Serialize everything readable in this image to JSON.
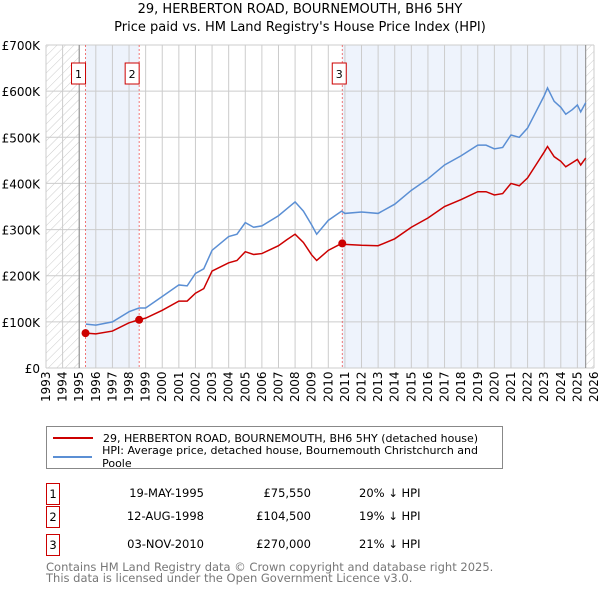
{
  "chart_data": {
    "type": "line",
    "title": "29, HERBERTON ROAD, BOURNEMOUTH, BH6 5HY",
    "subtitle": "Price paid vs. HM Land Registry's House Price Index (HPI)",
    "xlim": [
      1993,
      2026
    ],
    "ylim": [
      0,
      700000
    ],
    "x_ticks": [
      "1993",
      "1994",
      "1995",
      "1996",
      "1997",
      "1998",
      "1999",
      "2000",
      "2001",
      "2002",
      "2003",
      "2004",
      "2005",
      "2006",
      "2007",
      "2008",
      "2009",
      "2010",
      "2011",
      "2012",
      "2013",
      "2014",
      "2015",
      "2016",
      "2017",
      "2018",
      "2019",
      "2020",
      "2021",
      "2022",
      "2023",
      "2024",
      "2025",
      "2026"
    ],
    "y_ticks": [
      {
        "v": 0,
        "label": "£0"
      },
      {
        "v": 100000,
        "label": "£100K"
      },
      {
        "v": 200000,
        "label": "£200K"
      },
      {
        "v": 300000,
        "label": "£300K"
      },
      {
        "v": 400000,
        "label": "£400K"
      },
      {
        "v": 500000,
        "label": "£500K"
      },
      {
        "v": 600000,
        "label": "£600K"
      },
      {
        "v": 700000,
        "label": "£700K"
      }
    ],
    "x": [
      1995.4,
      1996,
      1997,
      1998,
      1998.6,
      1999,
      2000,
      2001,
      2001.5,
      2002,
      2002.5,
      2003,
      2004,
      2004.5,
      2005,
      2005.5,
      2006,
      2007,
      2007.5,
      2008,
      2008.5,
      2009,
      2009.3,
      2010,
      2010.8,
      2011,
      2012,
      2013,
      2014,
      2015,
      2016,
      2017,
      2018,
      2019,
      2019.5,
      2020,
      2020.5,
      2021,
      2021.5,
      2022,
      2022.5,
      2023,
      2023.2,
      2023.6,
      2024,
      2024.3,
      2024.7,
      2025,
      2025.2,
      2025.5
    ],
    "series": [
      {
        "name": "29, HERBERTON ROAD, BOURNEMOUTH, BH6 5HY (detached house)",
        "color": "#cc0000",
        "values": [
          75550,
          74000,
          80000,
          98000,
          104500,
          108000,
          125000,
          145000,
          145000,
          162000,
          172000,
          210000,
          228000,
          233000,
          252000,
          246000,
          248000,
          265000,
          278000,
          290000,
          272000,
          245000,
          233000,
          255000,
          270000,
          268000,
          266000,
          265000,
          280000,
          305000,
          325000,
          350000,
          365000,
          382000,
          382000,
          375000,
          378000,
          400000,
          395000,
          412000,
          440000,
          468000,
          480000,
          458000,
          448000,
          436000,
          445000,
          452000,
          440000,
          455000
        ]
      },
      {
        "name": "HPI: Average price, detached house, Bournemouth Christchurch and Poole",
        "color": "#5b8fd4",
        "values": [
          95000,
          93000,
          100000,
          122000,
          130000,
          130000,
          155000,
          180000,
          178000,
          205000,
          215000,
          255000,
          285000,
          290000,
          315000,
          305000,
          308000,
          330000,
          345000,
          360000,
          340000,
          310000,
          290000,
          320000,
          340000,
          335000,
          338000,
          335000,
          355000,
          385000,
          410000,
          440000,
          460000,
          483000,
          483000,
          475000,
          478000,
          505000,
          500000,
          520000,
          555000,
          590000,
          607000,
          578000,
          565000,
          550000,
          560000,
          570000,
          555000,
          575000
        ]
      }
    ],
    "sales": [
      {
        "n": "1",
        "x": 1995.38,
        "value": 75550,
        "date": "19-MAY-1995",
        "price": "£75,550",
        "hpi": "20% ↓ HPI"
      },
      {
        "n": "2",
        "x": 1998.61,
        "value": 104500,
        "date": "12-AUG-1998",
        "price": "£104,500",
        "hpi": "19% ↓ HPI"
      },
      {
        "n": "3",
        "x": 2010.84,
        "value": 270000,
        "date": "03-NOV-2010",
        "price": "£270,000",
        "hpi": "21% ↓ HPI"
      }
    ],
    "shaded_ranges": [
      [
        1995.38,
        1998.61
      ],
      [
        2010.84,
        2025.5
      ]
    ],
    "hatched_ranges": [
      [
        1993,
        1995
      ],
      [
        2025.5,
        2026
      ]
    ],
    "legend_position": "bottom"
  },
  "footer": [
    "Contains HM Land Registry data © Crown copyright and database right 2025.",
    "This data is licensed under the Open Government Licence v3.0."
  ]
}
